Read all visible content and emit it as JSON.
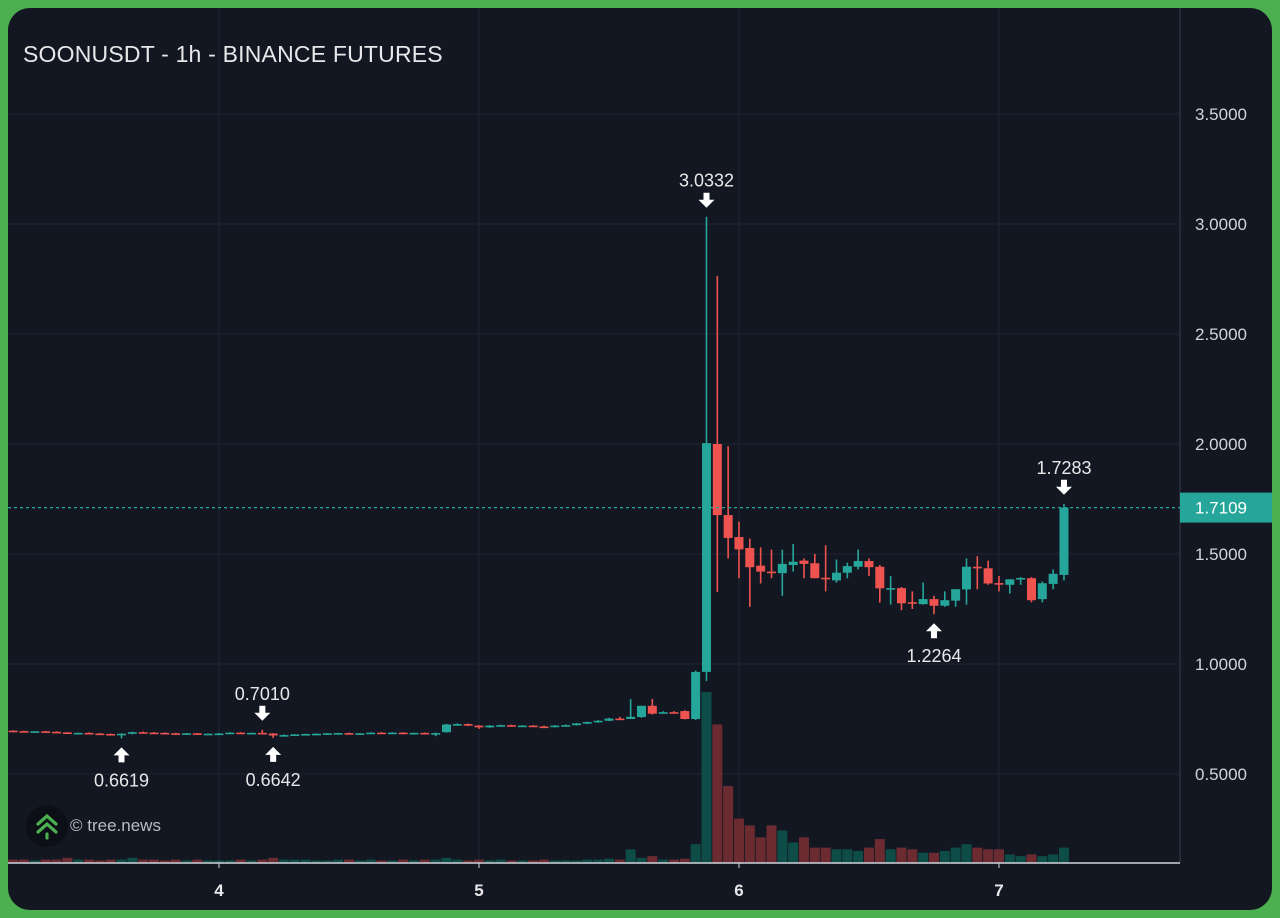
{
  "title": "SOONUSDT - 1h - BINANCE FUTURES",
  "watermark": "© tree.news",
  "colors": {
    "up": "#26a69a",
    "down": "#ef5350",
    "volume_up": "#0e4d47",
    "volume_down": "#6b2b31",
    "grid": "#222632",
    "background": "#131722",
    "frame": "#4caf50",
    "last_price": "#26a69a"
  },
  "chart_data": {
    "type": "candlestick",
    "title": "SOONUSDT - 1h - BINANCE FUTURES",
    "interval": "1h",
    "x_unit": "hours since day 4 00:00",
    "x_ticks": [
      {
        "label": "4",
        "hour": 0
      },
      {
        "label": "5",
        "hour": 24
      },
      {
        "label": "6",
        "hour": 48
      },
      {
        "label": "7",
        "hour": 72
      }
    ],
    "y_ticks": [
      "0.5000",
      "1.0000",
      "1.5000",
      "2.0000",
      "2.5000",
      "3.0000",
      "3.5000"
    ],
    "ylim": [
      0.1,
      3.9
    ],
    "xlim": [
      -19.7,
      88.5
    ],
    "grid": true,
    "last_price": 1.7109,
    "last_price_label": "1.7109",
    "annotations": [
      {
        "label": "3.0332",
        "hour": 45,
        "price": 3.0332,
        "dir": "down"
      },
      {
        "label": "1.7283",
        "hour": 78,
        "price": 1.7283,
        "dir": "down"
      },
      {
        "label": "0.7010",
        "hour": 4,
        "price": 0.701,
        "dir": "down"
      },
      {
        "label": "1.2264",
        "hour": 66,
        "price": 1.2264,
        "dir": "up"
      },
      {
        "label": "0.6619",
        "hour": -9,
        "price": 0.6619,
        "dir": "up"
      },
      {
        "label": "0.6642",
        "hour": 5,
        "price": 0.6642,
        "dir": "up"
      }
    ],
    "candles_fields": [
      "hour",
      "open",
      "high",
      "low",
      "close",
      "volume_relative"
    ],
    "candles": [
      [
        -19,
        0.697,
        0.699,
        0.694,
        0.695,
        2
      ],
      [
        -18,
        0.695,
        0.697,
        0.692,
        0.693,
        2
      ],
      [
        -17,
        0.693,
        0.695,
        0.69,
        0.694,
        1.5
      ],
      [
        -16,
        0.694,
        0.696,
        0.691,
        0.692,
        2
      ],
      [
        -15,
        0.692,
        0.694,
        0.688,
        0.689,
        2
      ],
      [
        -14,
        0.689,
        0.69,
        0.683,
        0.684,
        3
      ],
      [
        -13,
        0.684,
        0.688,
        0.682,
        0.687,
        2
      ],
      [
        -12,
        0.687,
        0.689,
        0.683,
        0.684,
        2
      ],
      [
        -11,
        0.684,
        0.686,
        0.681,
        0.682,
        1.5
      ],
      [
        -10,
        0.682,
        0.684,
        0.676,
        0.678,
        2
      ],
      [
        -9,
        0.678,
        0.685,
        0.6619,
        0.683,
        2
      ],
      [
        -8,
        0.683,
        0.692,
        0.68,
        0.69,
        3
      ],
      [
        -7,
        0.69,
        0.693,
        0.686,
        0.688,
        2
      ],
      [
        -6,
        0.688,
        0.691,
        0.684,
        0.687,
        2
      ],
      [
        -5,
        0.687,
        0.689,
        0.684,
        0.685,
        1.5
      ],
      [
        -4,
        0.685,
        0.687,
        0.681,
        0.683,
        2
      ],
      [
        -3,
        0.683,
        0.686,
        0.68,
        0.685,
        1.5
      ],
      [
        -2,
        0.685,
        0.686,
        0.678,
        0.68,
        2
      ],
      [
        -1,
        0.68,
        0.684,
        0.677,
        0.683,
        1.5
      ],
      [
        0,
        0.683,
        0.686,
        0.68,
        0.684,
        1.5
      ],
      [
        1,
        0.684,
        0.69,
        0.682,
        0.688,
        1.5
      ],
      [
        2,
        0.688,
        0.69,
        0.683,
        0.685,
        2
      ],
      [
        3,
        0.685,
        0.688,
        0.683,
        0.687,
        1.5
      ],
      [
        4,
        0.687,
        0.701,
        0.683,
        0.684,
        2
      ],
      [
        5,
        0.684,
        0.686,
        0.6642,
        0.675,
        3
      ],
      [
        6,
        0.675,
        0.68,
        0.672,
        0.677,
        2
      ],
      [
        7,
        0.677,
        0.681,
        0.674,
        0.68,
        2
      ],
      [
        8,
        0.68,
        0.683,
        0.677,
        0.682,
        2
      ],
      [
        9,
        0.682,
        0.685,
        0.679,
        0.683,
        1.5
      ],
      [
        10,
        0.683,
        0.686,
        0.68,
        0.685,
        1.5
      ],
      [
        11,
        0.685,
        0.687,
        0.682,
        0.686,
        2
      ],
      [
        12,
        0.686,
        0.688,
        0.68,
        0.681,
        2
      ],
      [
        13,
        0.681,
        0.686,
        0.679,
        0.685,
        1.5
      ],
      [
        14,
        0.685,
        0.69,
        0.683,
        0.688,
        2
      ],
      [
        15,
        0.688,
        0.69,
        0.684,
        0.685,
        1.5
      ],
      [
        16,
        0.685,
        0.69,
        0.682,
        0.688,
        1.5
      ],
      [
        17,
        0.688,
        0.69,
        0.684,
        0.686,
        2
      ],
      [
        18,
        0.686,
        0.688,
        0.683,
        0.687,
        1.5
      ],
      [
        19,
        0.687,
        0.689,
        0.683,
        0.684,
        2
      ],
      [
        20,
        0.684,
        0.688,
        0.672,
        0.686,
        2
      ],
      [
        21,
        0.69,
        0.728,
        0.688,
        0.725,
        3
      ],
      [
        22,
        0.725,
        0.73,
        0.72,
        0.727,
        2
      ],
      [
        23,
        0.727,
        0.729,
        0.718,
        0.72,
        1.5
      ],
      [
        24,
        0.72,
        0.722,
        0.705,
        0.712,
        2
      ],
      [
        25,
        0.712,
        0.722,
        0.71,
        0.72,
        1.5
      ],
      [
        26,
        0.72,
        0.724,
        0.716,
        0.722,
        2
      ],
      [
        27,
        0.722,
        0.724,
        0.715,
        0.718,
        1.5
      ],
      [
        28,
        0.718,
        0.722,
        0.714,
        0.72,
        1.5
      ],
      [
        29,
        0.72,
        0.722,
        0.714,
        0.716,
        1.5
      ],
      [
        30,
        0.716,
        0.72,
        0.712,
        0.714,
        2
      ],
      [
        31,
        0.714,
        0.722,
        0.712,
        0.72,
        1.5
      ],
      [
        32,
        0.72,
        0.725,
        0.717,
        0.722,
        1.5
      ],
      [
        33,
        0.722,
        0.732,
        0.72,
        0.73,
        1.5
      ],
      [
        34,
        0.73,
        0.738,
        0.727,
        0.736,
        2
      ],
      [
        35,
        0.736,
        0.745,
        0.733,
        0.742,
        2
      ],
      [
        36,
        0.742,
        0.755,
        0.74,
        0.752,
        2.5
      ],
      [
        37,
        0.752,
        0.76,
        0.748,
        0.75,
        2
      ],
      [
        38,
        0.75,
        0.84,
        0.75,
        0.76,
        8
      ],
      [
        39,
        0.759,
        0.81,
        0.755,
        0.81,
        3
      ],
      [
        40,
        0.81,
        0.841,
        0.77,
        0.774,
        4
      ],
      [
        41,
        0.78,
        0.785,
        0.776,
        0.781,
        2
      ],
      [
        42,
        0.781,
        0.786,
        0.777,
        0.78,
        2
      ],
      [
        43,
        0.786,
        0.79,
        0.748,
        0.75,
        2.5
      ],
      [
        44,
        0.75,
        0.97,
        0.745,
        0.964,
        11
      ],
      [
        45,
        0.964,
        3.0332,
        0.923,
        2.004,
        100
      ],
      [
        46,
        2.0,
        2.764,
        1.327,
        1.677,
        81
      ],
      [
        47,
        1.677,
        1.99,
        1.48,
        1.573,
        45
      ],
      [
        48,
        1.577,
        1.647,
        1.39,
        1.521,
        26
      ],
      [
        49,
        1.527,
        1.57,
        1.26,
        1.44,
        22
      ],
      [
        50,
        1.447,
        1.53,
        1.366,
        1.42,
        15
      ],
      [
        51,
        1.42,
        1.52,
        1.39,
        1.415,
        22
      ],
      [
        52,
        1.413,
        1.52,
        1.31,
        1.455,
        19
      ],
      [
        53,
        1.45,
        1.545,
        1.42,
        1.465,
        12
      ],
      [
        54,
        1.47,
        1.48,
        1.39,
        1.455,
        15
      ],
      [
        55,
        1.458,
        1.5,
        1.39,
        1.39,
        9
      ],
      [
        56,
        1.392,
        1.54,
        1.33,
        1.388,
        9
      ],
      [
        57,
        1.38,
        1.475,
        1.37,
        1.415,
        8
      ],
      [
        58,
        1.415,
        1.46,
        1.39,
        1.445,
        8
      ],
      [
        59,
        1.442,
        1.52,
        1.43,
        1.468,
        7
      ],
      [
        60,
        1.468,
        1.48,
        1.4,
        1.44,
        9
      ],
      [
        61,
        1.442,
        1.45,
        1.279,
        1.344,
        14
      ],
      [
        62,
        1.343,
        1.4,
        1.27,
        1.345,
        8
      ],
      [
        63,
        1.345,
        1.35,
        1.245,
        1.276,
        9
      ],
      [
        64,
        1.281,
        1.33,
        1.25,
        1.278,
        8
      ],
      [
        65,
        1.272,
        1.37,
        1.27,
        1.295,
        6
      ],
      [
        66,
        1.295,
        1.31,
        1.2264,
        1.265,
        6
      ],
      [
        67,
        1.265,
        1.33,
        1.26,
        1.29,
        7
      ],
      [
        68,
        1.288,
        1.34,
        1.26,
        1.34,
        9
      ],
      [
        69,
        1.339,
        1.48,
        1.27,
        1.442,
        11
      ],
      [
        70,
        1.442,
        1.49,
        1.34,
        1.438,
        9
      ],
      [
        71,
        1.435,
        1.47,
        1.36,
        1.366,
        8
      ],
      [
        72,
        1.368,
        1.4,
        1.33,
        1.365,
        8
      ],
      [
        73,
        1.36,
        1.385,
        1.32,
        1.385,
        5
      ],
      [
        74,
        1.388,
        1.395,
        1.36,
        1.391,
        4
      ],
      [
        75,
        1.39,
        1.395,
        1.28,
        1.29,
        5
      ],
      [
        76,
        1.295,
        1.375,
        1.28,
        1.367,
        4
      ],
      [
        77,
        1.364,
        1.43,
        1.34,
        1.41,
        5
      ],
      [
        78,
        1.405,
        1.7283,
        1.38,
        1.7109,
        9
      ]
    ]
  }
}
